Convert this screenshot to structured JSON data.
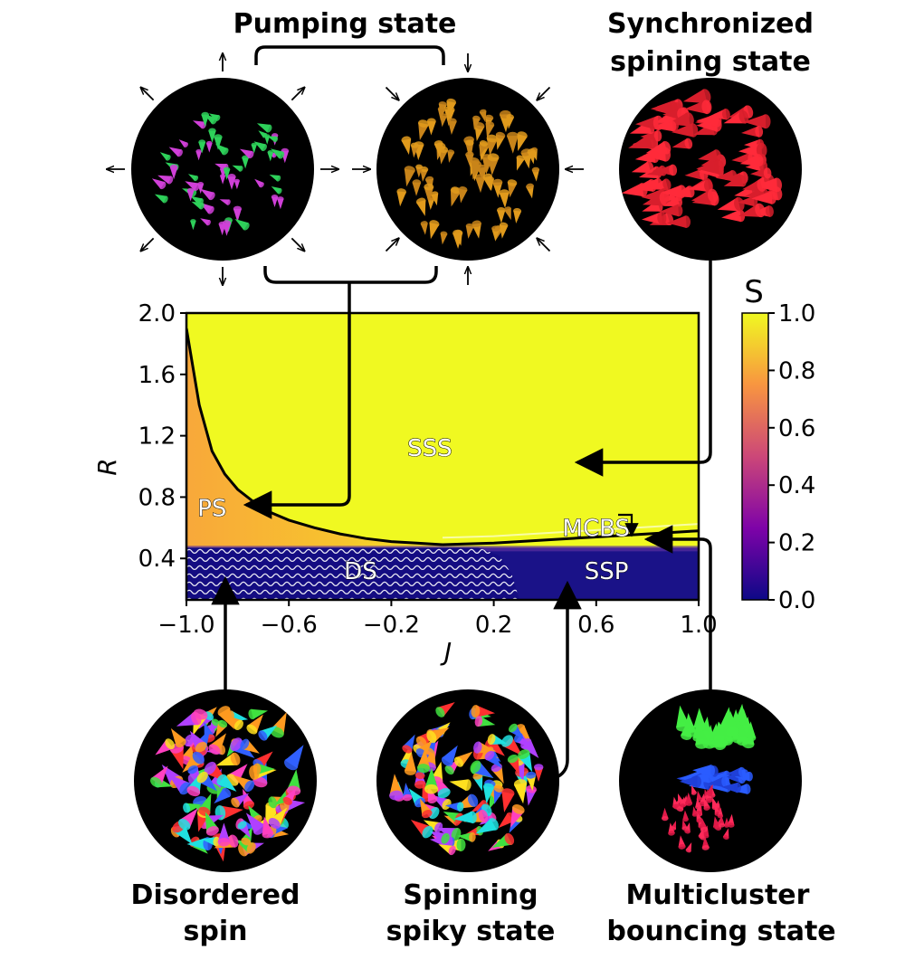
{
  "states": {
    "pumping": {
      "title": "Pumping state",
      "lines": [
        "Pumping state"
      ]
    },
    "synchronized": {
      "title": "Synchronized spining state",
      "lines": [
        "Synchronized",
        "spining state"
      ]
    },
    "disordered": {
      "title": "Disordered spin",
      "lines": [
        "Disordered",
        "spin"
      ]
    },
    "spiky": {
      "title": "Spinning spiky state",
      "lines": [
        "Spinning",
        "spiky state"
      ]
    },
    "multicluster": {
      "title": "Multicluster bouncing state",
      "lines": [
        "Multicluster",
        "bouncing state"
      ]
    }
  },
  "chart_data": {
    "type": "heatmap",
    "title": "",
    "xlabel": "J",
    "ylabel": "R",
    "xlim": [
      -1.0,
      1.0
    ],
    "ylim": [
      0.13,
      2.0
    ],
    "x_ticks": [
      -1.0,
      -0.6,
      -0.2,
      0.2,
      0.6,
      1.0
    ],
    "x_tick_labels": [
      "−1.0",
      "−0.6",
      "−0.2",
      "0.2",
      "0.6",
      "1.0"
    ],
    "y_ticks": [
      0.4,
      0.8,
      1.2,
      1.6,
      2.0
    ],
    "y_tick_labels": [
      "0.4",
      "0.8",
      "1.2",
      "1.6",
      "2.0"
    ],
    "colorbar": {
      "label": "S",
      "range": [
        0.0,
        1.0
      ],
      "ticks": [
        0.0,
        0.2,
        0.4,
        0.6,
        0.8,
        1.0
      ],
      "tick_labels": [
        "0.0",
        "0.2",
        "0.4",
        "0.6",
        "0.8",
        "1.0"
      ],
      "colors": [
        "#0d0887",
        "#7e03a8",
        "#cc4778",
        "#f89540",
        "#f0f921"
      ]
    },
    "regions": [
      {
        "label": "SSS",
        "J": -0.05,
        "R": 1.12
      },
      {
        "label": "PS",
        "J": -0.9,
        "R": 0.73
      },
      {
        "label": "MCBS",
        "J": 0.6,
        "R": 0.6
      },
      {
        "label": "DS",
        "J": -0.32,
        "R": 0.32
      },
      {
        "label": "SSP",
        "J": 0.64,
        "R": 0.32
      }
    ],
    "boundaries": {
      "ps_sss_curve": [
        [
          -1.0,
          1.9
        ],
        [
          -0.95,
          1.4
        ],
        [
          -0.9,
          1.1
        ],
        [
          -0.85,
          0.95
        ],
        [
          -0.8,
          0.85
        ],
        [
          -0.7,
          0.72
        ],
        [
          -0.6,
          0.65
        ],
        [
          -0.5,
          0.6
        ],
        [
          -0.4,
          0.56
        ],
        [
          -0.3,
          0.53
        ],
        [
          -0.2,
          0.51
        ],
        [
          -0.1,
          0.5
        ],
        [
          0.0,
          0.49
        ]
      ],
      "mcbs_curve": [
        [
          0.0,
          0.49
        ],
        [
          0.2,
          0.5
        ],
        [
          0.4,
          0.52
        ],
        [
          0.6,
          0.54
        ],
        [
          0.8,
          0.56
        ],
        [
          1.0,
          0.58
        ]
      ],
      "lower_band_R": 0.47,
      "ds_ssp_boundary": [
        [
          0.14,
          0.47
        ],
        [
          0.22,
          0.42
        ],
        [
          0.27,
          0.3
        ],
        [
          0.3,
          0.13
        ]
      ]
    }
  }
}
